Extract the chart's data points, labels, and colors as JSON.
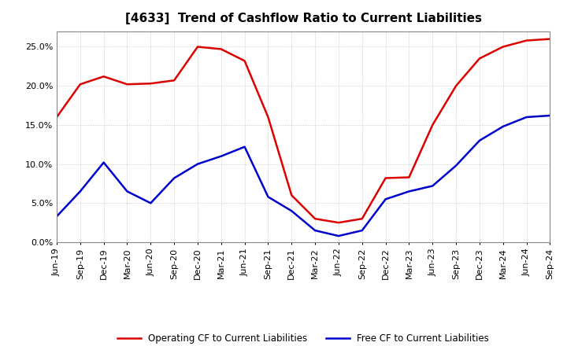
{
  "title": "[4633]  Trend of Cashflow Ratio to Current Liabilities",
  "x_labels": [
    "Jun-19",
    "Sep-19",
    "Dec-19",
    "Mar-20",
    "Jun-20",
    "Sep-20",
    "Dec-20",
    "Mar-21",
    "Jun-21",
    "Sep-21",
    "Dec-21",
    "Mar-22",
    "Jun-22",
    "Sep-22",
    "Dec-22",
    "Mar-23",
    "Jun-23",
    "Sep-23",
    "Dec-23",
    "Mar-24",
    "Jun-24",
    "Sep-24"
  ],
  "operating_cf": [
    0.16,
    0.202,
    0.212,
    0.202,
    0.203,
    0.207,
    0.25,
    0.247,
    0.232,
    0.16,
    0.06,
    0.03,
    0.025,
    0.03,
    0.082,
    0.083,
    0.15,
    0.2,
    0.235,
    0.25,
    0.258,
    0.26
  ],
  "free_cf": [
    0.033,
    0.065,
    0.102,
    0.065,
    0.05,
    0.082,
    0.1,
    0.11,
    0.122,
    0.058,
    0.04,
    0.015,
    0.008,
    0.015,
    0.055,
    0.065,
    0.072,
    0.098,
    0.13,
    0.148,
    0.16,
    0.162
  ],
  "operating_color": "#dd0000",
  "free_color": "#0000cc",
  "ylim": [
    0.0,
    0.27
  ],
  "yticks": [
    0.0,
    0.05,
    0.1,
    0.15,
    0.2,
    0.25
  ],
  "legend_op": "Operating CF to Current Liabilities",
  "legend_free": "Free CF to Current Liabilities",
  "bg_color": "#ffffff",
  "plot_bg_color": "#ffffff",
  "title_fontsize": 11,
  "tick_fontsize": 8
}
